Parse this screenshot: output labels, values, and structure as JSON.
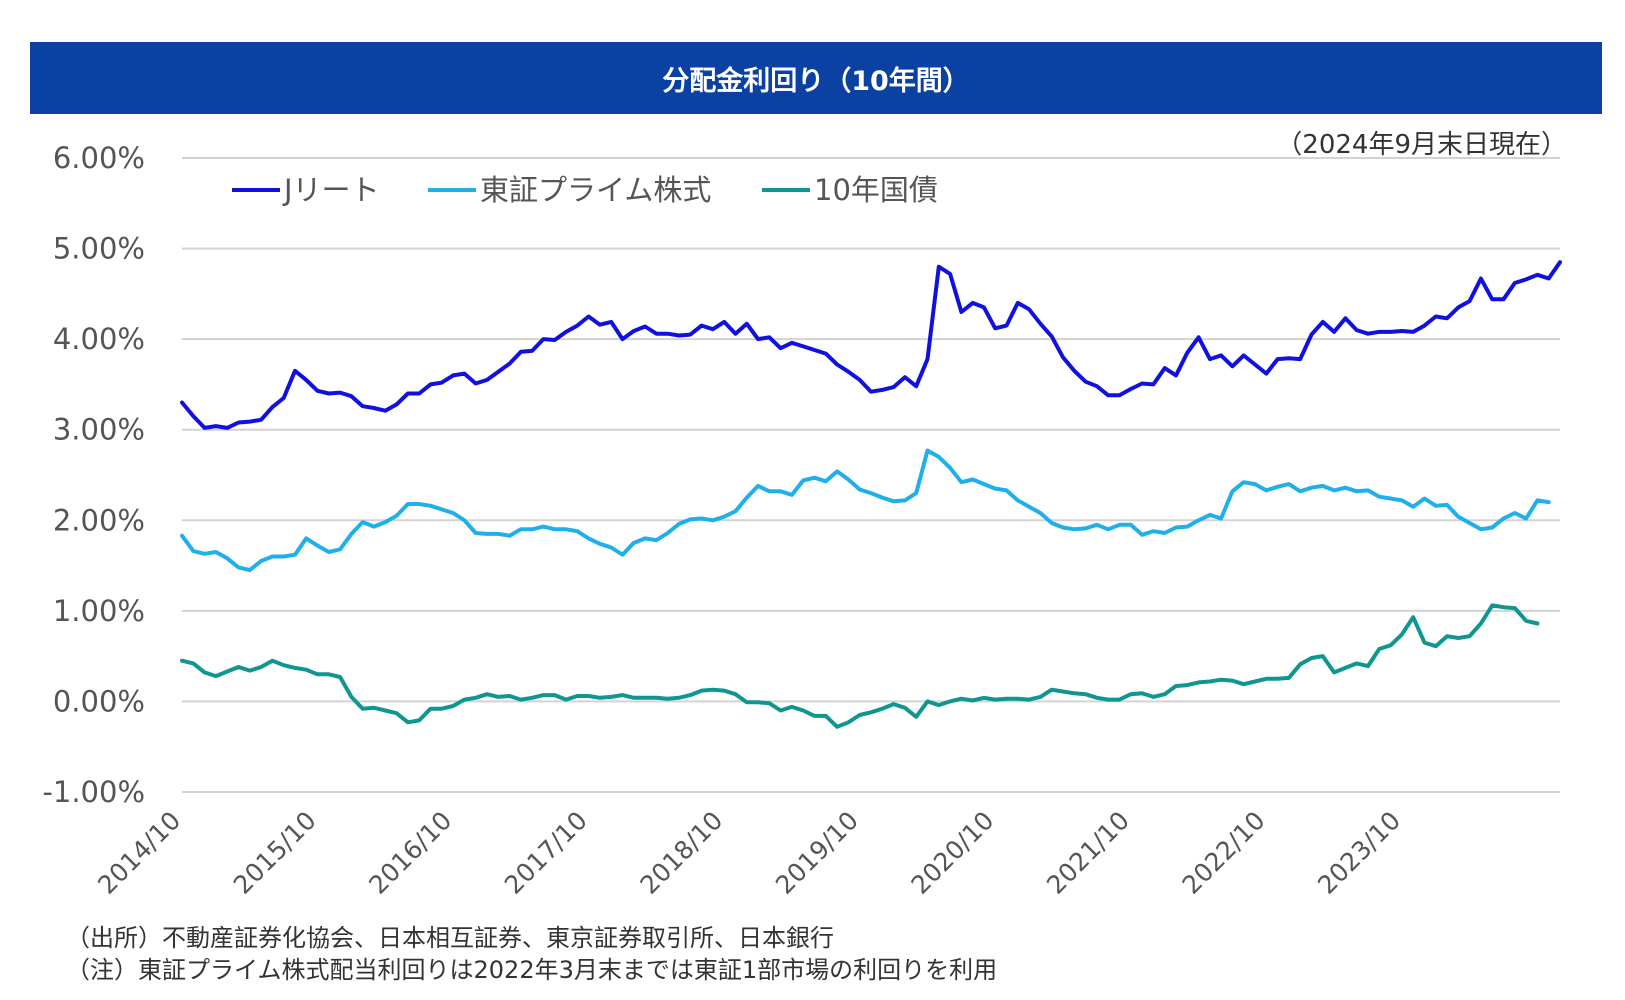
{
  "header": {
    "title": "分配金利回り（10年間）",
    "as_of": "（2024年9月末日現在）"
  },
  "notes": {
    "source": "（出所）不動産証券化協会、日本相互証券、東京証券取引所、日本銀行",
    "note": "（注）東証プライム株式配当利回りは2022年3月末までは東証1部市場の利回りを利用"
  },
  "chart_data": {
    "type": "line",
    "title": "分配金利回り（10年間）",
    "xlabel": "",
    "ylabel": "",
    "ylim": [
      -1.0,
      6.0
    ],
    "y_ticks": [
      "-1.00%",
      "0.00%",
      "1.00%",
      "2.00%",
      "3.00%",
      "4.00%",
      "5.00%",
      "6.00%"
    ],
    "x_ticks": [
      "2014/10",
      "2015/10",
      "2016/10",
      "2017/10",
      "2018/10",
      "2019/10",
      "2020/10",
      "2021/10",
      "2022/10",
      "2023/10"
    ],
    "x_start": "2014/10",
    "x_end": "2024/09",
    "grid": true,
    "legend_position": "top-left",
    "series": [
      {
        "name": "Jリート",
        "color": "#1010e0",
        "values": [
          3.3,
          3.15,
          3.02,
          3.04,
          3.02,
          3.08,
          3.09,
          3.11,
          3.25,
          3.35,
          3.65,
          3.55,
          3.43,
          3.4,
          3.41,
          3.37,
          3.26,
          3.24,
          3.21,
          3.28,
          3.4,
          3.4,
          3.5,
          3.52,
          3.6,
          3.62,
          3.51,
          3.55,
          3.64,
          3.73,
          3.86,
          3.87,
          4.0,
          3.99,
          4.08,
          4.15,
          4.25,
          4.16,
          4.19,
          4.0,
          4.09,
          4.14,
          4.06,
          4.06,
          4.04,
          4.05,
          4.15,
          4.11,
          4.19,
          4.06,
          4.17,
          4.0,
          4.02,
          3.9,
          3.96,
          3.92,
          3.88,
          3.84,
          3.72,
          3.64,
          3.55,
          3.42,
          3.44,
          3.47,
          3.58,
          3.48,
          3.78,
          4.8,
          4.72,
          4.3,
          4.4,
          4.35,
          4.12,
          4.15,
          4.4,
          4.33,
          4.17,
          4.03,
          3.8,
          3.65,
          3.53,
          3.48,
          3.38,
          3.38,
          3.45,
          3.51,
          3.5,
          3.68,
          3.6,
          3.85,
          4.02,
          3.78,
          3.82,
          3.7,
          3.82,
          3.72,
          3.62,
          3.78,
          3.79,
          3.78,
          4.05,
          4.19,
          4.08,
          4.23,
          4.1,
          4.06,
          4.08,
          4.08,
          4.09,
          4.08,
          4.15,
          4.25,
          4.23,
          4.35,
          4.42,
          4.67,
          4.44,
          4.44,
          4.62,
          4.66,
          4.71,
          4.67,
          4.85
        ]
      },
      {
        "name": "東証プライム株式",
        "color": "#1fb0ec",
        "values": [
          1.83,
          1.66,
          1.63,
          1.65,
          1.58,
          1.48,
          1.45,
          1.55,
          1.6,
          1.6,
          1.62,
          1.8,
          1.72,
          1.65,
          1.68,
          1.85,
          1.98,
          1.93,
          1.98,
          2.05,
          2.18,
          2.18,
          2.16,
          2.12,
          2.08,
          2.0,
          1.86,
          1.85,
          1.85,
          1.83,
          1.9,
          1.9,
          1.93,
          1.9,
          1.9,
          1.88,
          1.8,
          1.74,
          1.7,
          1.62,
          1.75,
          1.8,
          1.78,
          1.86,
          1.96,
          2.01,
          2.02,
          2.0,
          2.04,
          2.1,
          2.25,
          2.38,
          2.32,
          2.32,
          2.28,
          2.44,
          2.47,
          2.43,
          2.54,
          2.45,
          2.34,
          2.3,
          2.25,
          2.21,
          2.22,
          2.3,
          2.77,
          2.7,
          2.58,
          2.42,
          2.45,
          2.4,
          2.35,
          2.33,
          2.22,
          2.15,
          2.08,
          1.97,
          1.92,
          1.9,
          1.91,
          1.95,
          1.9,
          1.95,
          1.95,
          1.84,
          1.88,
          1.86,
          1.92,
          1.93,
          2.0,
          2.06,
          2.02,
          2.32,
          2.42,
          2.4,
          2.33,
          2.37,
          2.4,
          2.32,
          2.36,
          2.38,
          2.33,
          2.36,
          2.32,
          2.33,
          2.26,
          2.24,
          2.22,
          2.15,
          2.24,
          2.16,
          2.17,
          2.04,
          1.97,
          1.9,
          1.92,
          2.02,
          2.08,
          2.02,
          2.22,
          2.2
        ]
      },
      {
        "name": "10年国債",
        "color": "#0f9690",
        "values": [
          0.45,
          0.42,
          0.32,
          0.28,
          0.33,
          0.38,
          0.34,
          0.38,
          0.45,
          0.4,
          0.37,
          0.35,
          0.3,
          0.3,
          0.27,
          0.05,
          -0.08,
          -0.07,
          -0.1,
          -0.13,
          -0.23,
          -0.21,
          -0.08,
          -0.08,
          -0.05,
          0.02,
          0.04,
          0.08,
          0.05,
          0.06,
          0.02,
          0.04,
          0.07,
          0.07,
          0.02,
          0.06,
          0.06,
          0.04,
          0.05,
          0.07,
          0.04,
          0.04,
          0.04,
          0.03,
          0.04,
          0.07,
          0.12,
          0.13,
          0.12,
          0.08,
          -0.01,
          -0.01,
          -0.02,
          -0.1,
          -0.06,
          -0.1,
          -0.16,
          -0.16,
          -0.28,
          -0.23,
          -0.15,
          -0.12,
          -0.08,
          -0.03,
          -0.07,
          -0.17,
          0.0,
          -0.04,
          0.0,
          0.03,
          0.01,
          0.04,
          0.02,
          0.03,
          0.03,
          0.02,
          0.05,
          0.13,
          0.11,
          0.09,
          0.08,
          0.04,
          0.02,
          0.02,
          0.08,
          0.09,
          0.05,
          0.08,
          0.17,
          0.18,
          0.21,
          0.22,
          0.24,
          0.23,
          0.19,
          0.22,
          0.25,
          0.25,
          0.26,
          0.41,
          0.48,
          0.5,
          0.32,
          0.37,
          0.42,
          0.39,
          0.58,
          0.62,
          0.74,
          0.93,
          0.65,
          0.61,
          0.72,
          0.7,
          0.72,
          0.86,
          1.06,
          1.04,
          1.03,
          0.89,
          0.86
        ]
      }
    ]
  }
}
